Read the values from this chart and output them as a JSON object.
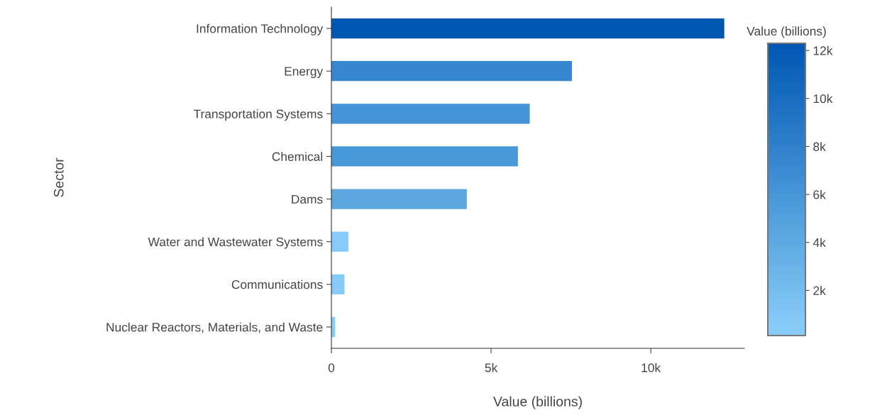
{
  "chart_data": {
    "type": "bar",
    "orientation": "horizontal",
    "xlabel": "Value (billions)",
    "ylabel": "Sector",
    "clabel": "Value (billions)",
    "categories": [
      "Information Technology",
      "Energy",
      "Transportation Systems",
      "Chemical",
      "Dams",
      "Water and Wastewater Systems",
      "Communications",
      "Nuclear Reactors, Materials, and Waste"
    ],
    "values": [
      12300,
      7530,
      6210,
      5840,
      4240,
      530,
      410,
      120
    ],
    "colors": [
      "#0057b1",
      "#3585cf",
      "#4594d8",
      "#4898d9",
      "#5ca7e0",
      "#87cbf8",
      "#87cbf8",
      "#87cdfa"
    ],
    "xlim": [
      0,
      12930
    ],
    "xticks": [
      {
        "value": 0,
        "label": "0"
      },
      {
        "value": 5000,
        "label": "5k"
      },
      {
        "value": 10000,
        "label": "10k"
      }
    ],
    "clim": [
      120,
      12300
    ],
    "cticks": [
      {
        "value": 2000,
        "label": "2k"
      },
      {
        "value": 4000,
        "label": "4k"
      },
      {
        "value": 6000,
        "label": "6k"
      },
      {
        "value": 8000,
        "label": "8k"
      },
      {
        "value": 10000,
        "label": "10k"
      },
      {
        "value": 12000,
        "label": "12k"
      }
    ],
    "grid": false,
    "legend": false
  }
}
